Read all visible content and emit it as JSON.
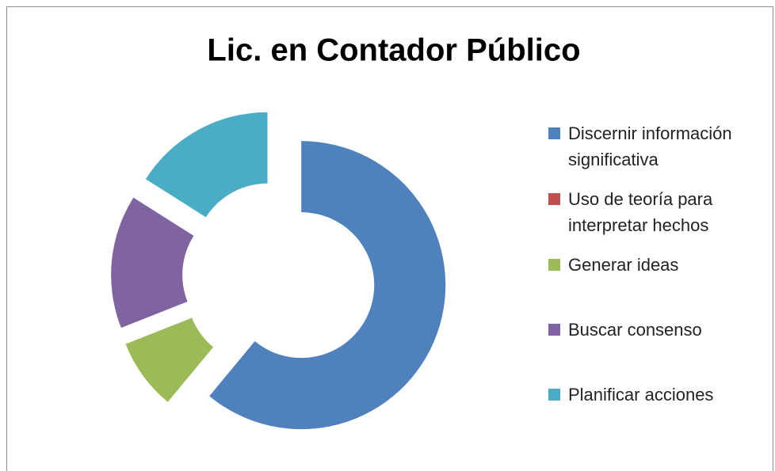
{
  "chart_data": {
    "type": "donut",
    "title": "Lic. en Contador Público",
    "categories": [
      "Discernir información significativa",
      "Uso de teoría para interpretar hechos",
      "Generar ideas",
      "Buscar consenso",
      "Planificar acciones"
    ],
    "values": [
      61,
      0,
      8,
      15,
      16
    ],
    "colors": [
      "#4f81bd",
      "#c0504d",
      "#9bbb59",
      "#8064a2",
      "#4bacc6"
    ],
    "legend": "right",
    "exploded": true
  }
}
